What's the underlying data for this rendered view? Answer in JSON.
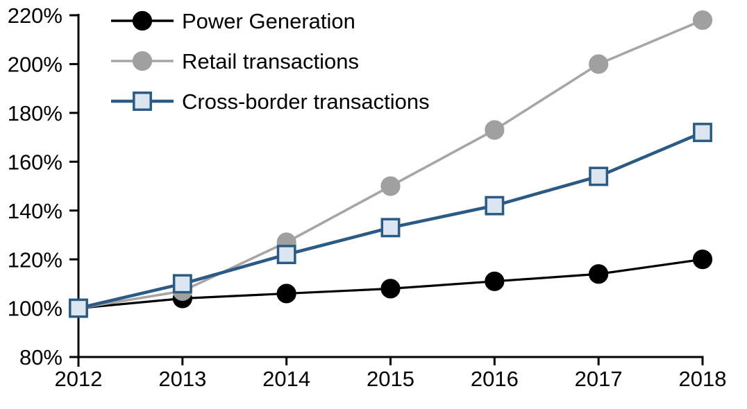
{
  "chart_data": {
    "type": "line",
    "title": "",
    "xlabel": "",
    "ylabel": "",
    "grid": false,
    "legend_position": "top-left-inside",
    "background_color": "#ffffff",
    "axis_color": "#000000",
    "x_labels": [
      "2012",
      "2013",
      "2014",
      "2015",
      "2016",
      "2017",
      "2018"
    ],
    "y_axis": {
      "min": 80,
      "max": 220,
      "step": 20,
      "unit": "%",
      "tick_values": [
        220,
        200,
        180,
        160,
        140,
        120,
        100,
        80
      ],
      "tick_labels": [
        "220%",
        "200%",
        "180%",
        "160%",
        "140%",
        "120%",
        "100%",
        "80%"
      ]
    },
    "series": [
      {
        "name": "Power Generation",
        "values": [
          100,
          104,
          106,
          108,
          111,
          114,
          120
        ],
        "line_color": "#000000",
        "line_width": 3.2,
        "marker": "circle",
        "marker_fill": "#000000",
        "marker_stroke": "#000000"
      },
      {
        "name": "Retail transactions",
        "values": [
          100,
          107,
          127,
          150,
          173,
          200,
          218
        ],
        "line_color": "#a6a6a6",
        "line_width": 3.6,
        "marker": "circle",
        "marker_fill": "#a0a0a0",
        "marker_stroke": "#a0a0a0"
      },
      {
        "name": "Cross-border transactions",
        "values": [
          100,
          110,
          122,
          133,
          142,
          154,
          172
        ],
        "line_color": "#2b5b84",
        "line_width": 4.6,
        "marker": "square",
        "marker_fill": "#dce6f1",
        "marker_stroke": "#2b5b84"
      }
    ]
  }
}
